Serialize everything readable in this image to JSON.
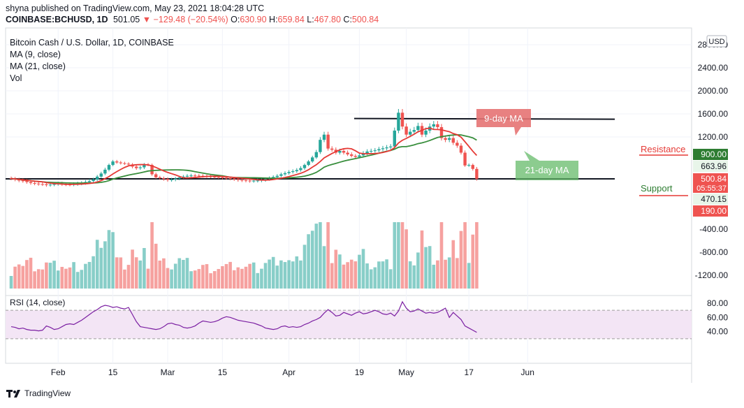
{
  "header": {
    "publish_line": "shyna published on TradingView.com, May 23, 2021 18:04:28 UTC",
    "symbol": "COINBASE:BCHUSD, 1D",
    "last": "501.05",
    "change": "−129.48 (−20.54%)",
    "o_label": "O:",
    "o_val": "630.90",
    "h_label": "H:",
    "h_val": "659.84",
    "l_label": "L:",
    "l_val": "467.80",
    "c_label": "C:",
    "c_val": "500.84"
  },
  "footer": {
    "brand": "TradingView",
    "logo_icon": "tradingview-logo-icon"
  },
  "colors": {
    "up": "#26a69a",
    "down": "#ef5350",
    "ma9": "#e53935",
    "ma21": "#388e3c",
    "rsi_line": "#7b1fa2",
    "rsi_band": "#f3e5f5",
    "resistance": "#e53935",
    "support": "#2e7d32"
  },
  "chart_data": {
    "type": "candlestick",
    "title": "Bitcoin Cash / U.S. Dollar, 1D, COINBASE",
    "legend": [
      "MA (9, close)",
      "MA (21, close)",
      "Vol"
    ],
    "currency": "USD",
    "price_ticks": [
      "2800.00",
      "2400.00",
      "2000.00",
      "1600.00",
      "1200.00",
      "900.00",
      "663.96",
      "500.84",
      "470.15",
      "190.00"
    ],
    "volume_ticks": [
      "-400.00",
      "-800.00",
      "-1200.00"
    ],
    "countdown": "05:55:37",
    "x_ticks": [
      "Feb",
      "15",
      "Mar",
      "15",
      "Apr",
      "19",
      "May",
      "17",
      "Jun"
    ],
    "x_tick_dates": [
      "2021-02-01",
      "2021-02-15",
      "2021-03-01",
      "2021-03-15",
      "2021-04-01",
      "2021-04-19",
      "2021-05-01",
      "2021-05-17",
      "2021-06-01"
    ],
    "first_date": "2021-01-20",
    "closes": [
      505,
      495,
      485,
      480,
      470,
      460,
      455,
      450,
      448,
      440,
      445,
      450,
      455,
      448,
      446,
      445,
      450,
      455,
      460,
      470,
      480,
      495,
      530,
      570,
      620,
      690,
      760,
      740,
      725,
      715,
      700,
      660,
      640,
      650,
      700,
      690,
      560,
      520,
      510,
      500,
      490,
      495,
      505,
      520,
      530,
      540,
      545,
      542,
      540,
      535,
      532,
      528,
      524,
      520,
      515,
      510,
      505,
      498,
      490,
      487,
      484,
      480,
      483,
      485,
      490,
      500,
      512,
      525,
      540,
      560,
      575,
      590,
      600,
      615,
      640,
      690,
      760,
      840,
      940,
      1150,
      1240,
      1000,
      980,
      930,
      960,
      930,
      900,
      870,
      850,
      880,
      920,
      950,
      960,
      970,
      990,
      1005,
      1020,
      1035,
      1310,
      1620,
      1380,
      1240,
      1290,
      1320,
      1390,
      1240,
      1310,
      1380,
      1420,
      1370,
      1180,
      1150,
      1180,
      1100,
      1050,
      930,
      680,
      690,
      630,
      501
    ],
    "rsi_ticks": [
      "80.00",
      "60.00",
      "40.00"
    ],
    "rsi_title": "RSI (14, close)",
    "rsi": [
      47,
      46,
      44,
      45,
      43,
      42,
      42,
      41,
      42,
      48,
      46,
      43,
      44,
      47,
      50,
      51,
      50,
      53,
      56,
      60,
      64,
      68,
      71,
      75,
      77,
      76,
      74,
      75,
      73,
      72,
      74,
      64,
      54,
      47,
      46,
      45,
      44,
      43,
      44,
      47,
      51,
      52,
      50,
      49,
      46,
      45,
      46,
      48,
      52,
      55,
      54,
      53,
      54,
      56,
      59,
      61,
      60,
      58,
      56,
      55,
      54,
      53,
      52,
      50,
      48,
      45,
      44,
      43,
      44,
      47,
      48,
      46,
      47,
      46,
      47,
      50,
      52,
      55,
      57,
      60,
      66,
      71,
      67,
      62,
      63,
      67,
      65,
      63,
      66,
      68,
      65,
      66,
      68,
      70,
      68,
      65,
      64,
      66,
      62,
      69,
      82,
      73,
      68,
      69,
      72,
      69,
      66,
      67,
      66,
      67,
      70,
      73,
      60,
      67,
      62,
      57,
      48,
      45,
      42,
      39
    ],
    "annotations": {
      "ma9": "9-day MA",
      "ma21": "21-day MA",
      "resistance": "Resistance",
      "support": "Support"
    },
    "levels": {
      "resistance": 900,
      "support": 190,
      "top_line": 1520,
      "bottom_line": 470
    }
  }
}
